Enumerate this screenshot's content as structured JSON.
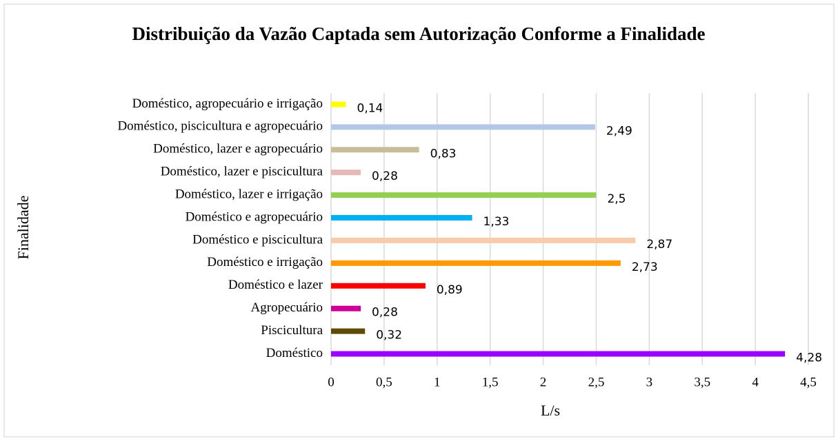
{
  "chart_data": {
    "type": "hbar",
    "title": "Distribuição da Vazão Captada sem Autorização Conforme a Finalidade",
    "x_label": "L/s",
    "y_label": "Finalidade",
    "categories": [
      "Doméstico, agropecuário e irrigação",
      "Doméstico, piscicultura e agropecuário",
      "Doméstico, lazer e agropecuário",
      "Doméstico, lazer e piscicultura",
      "Doméstico, lazer e irrigação",
      "Doméstico e agropecuário",
      "Doméstico e piscicultura",
      "Doméstico e irrigação",
      "Doméstico e lazer",
      "Agropecuário",
      "Piscicultura",
      "Doméstico"
    ],
    "values": [
      0.14,
      2.49,
      0.83,
      0.28,
      2.5,
      1.33,
      2.87,
      2.73,
      0.89,
      0.28,
      0.32,
      4.28
    ],
    "value_labels": [
      "0,14",
      "2,49",
      "0,83",
      "0,28",
      "2,5",
      "1,33",
      "2,87",
      "2,73",
      "0,89",
      "0,28",
      "0,32",
      "4,28"
    ],
    "colors": [
      "#ffff00",
      "#b4c7e7",
      "#c9bd98",
      "#e6b8b7",
      "#92d050",
      "#00b0f0",
      "#f8cbad",
      "#ff9900",
      "#ff0000",
      "#cc0099",
      "#5f4a00",
      "#9900ff"
    ],
    "xlim": [
      0,
      4.5
    ],
    "xticks": [
      0,
      {
        "value": 0.5,
        "label": "0,5"
      },
      1,
      {
        "value": 1.5,
        "label": "1,5"
      },
      2,
      {
        "value": 2.5,
        "label": "2,5"
      },
      3,
      {
        "value": 3.5,
        "label": "3,5"
      },
      4,
      {
        "value": 4.5,
        "label": "4,5"
      }
    ],
    "grid": true
  }
}
